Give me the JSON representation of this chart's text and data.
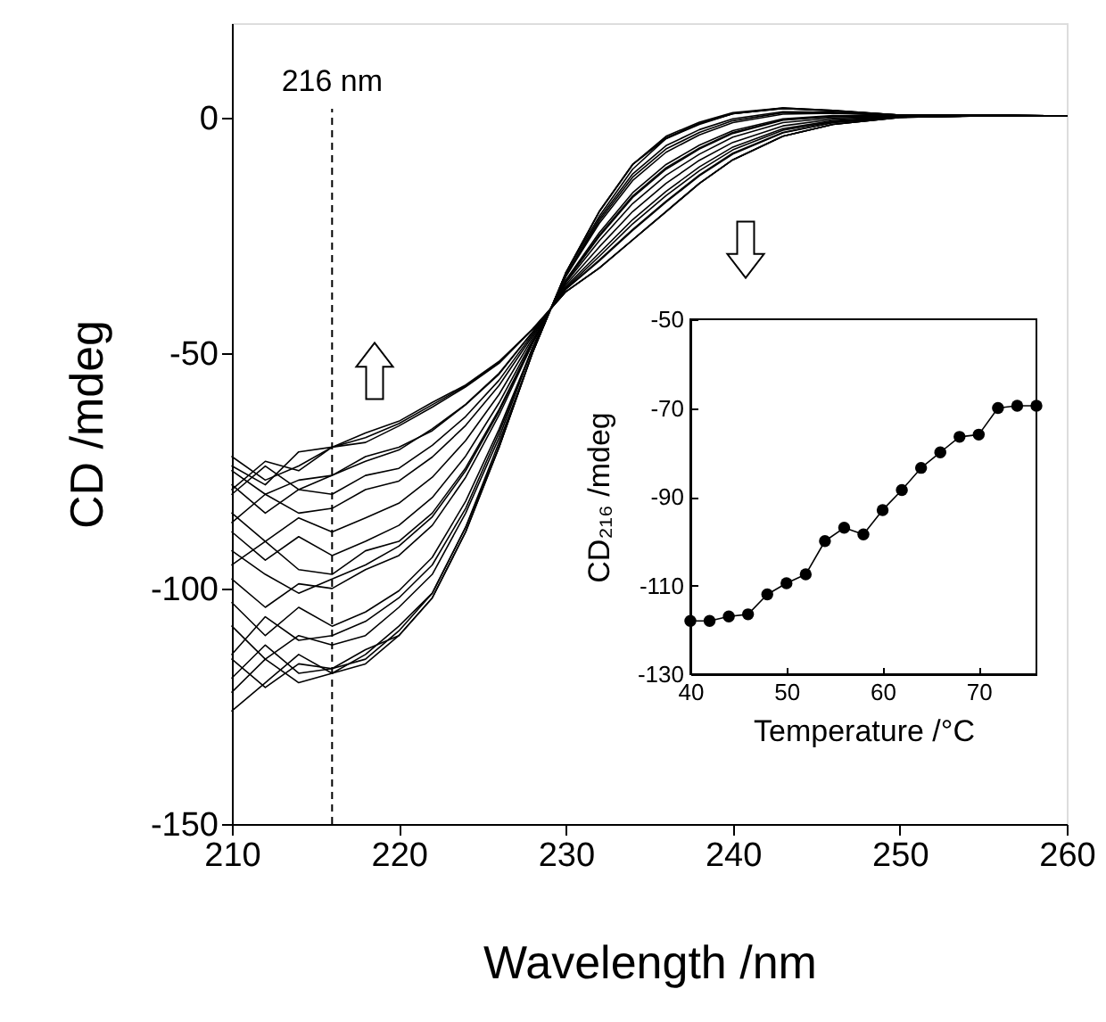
{
  "chart_data": [
    {
      "type": "line",
      "xlabel": "Wavelength /nm",
      "ylabel": "CD /mdeg",
      "xlim": [
        210,
        260
      ],
      "xticks": [
        210,
        220,
        230,
        240,
        250,
        260
      ],
      "ylim": [
        -150,
        20
      ],
      "yticks": [
        -150,
        -100,
        -50,
        0
      ],
      "x": [
        210,
        212,
        214,
        216,
        218,
        220,
        222,
        224,
        226,
        228,
        230,
        232,
        234,
        236,
        238,
        240,
        243,
        246,
        250,
        255,
        260
      ],
      "ref_lines": [
        {
          "axis": "x",
          "value": 216,
          "label": "216 nm",
          "line_style": "dashed",
          "color": "#000000"
        }
      ],
      "series": [
        {
          "color": "#000000",
          "values": [
            -122,
            -115,
            -120,
            -118,
            -116,
            -110,
            -102,
            -88,
            -70,
            -50,
            -33,
            -20,
            -10,
            -4,
            -1,
            1,
            2,
            1.5,
            0.5,
            0.5,
            0.3
          ]
        },
        {
          "color": "#000000",
          "values": [
            -126,
            -120,
            -114,
            -118,
            -114,
            -108,
            -101,
            -87,
            -69,
            -50,
            -33,
            -21,
            -11,
            -4.5,
            -1.5,
            0.8,
            2,
            1.5,
            0.5,
            0.5,
            0.3
          ]
        },
        {
          "color": "#000000",
          "values": [
            -115,
            -121,
            -116,
            -117,
            -115,
            -109,
            -101,
            -87,
            -70,
            -50,
            -33,
            -20,
            -10,
            -4.3,
            -1.3,
            0.8,
            1.9,
            1.4,
            0.5,
            0.5,
            0.3
          ]
        },
        {
          "color": "#000000",
          "values": [
            -119,
            -112,
            -118,
            -117,
            -113,
            -110,
            -102,
            -88,
            -70,
            -50,
            -33,
            -20,
            -10,
            -4.5,
            -1.3,
            0.8,
            1.9,
            1.4,
            0.5,
            0.5,
            0.3
          ]
        },
        {
          "color": "#000000",
          "values": [
            -108,
            -115,
            -110,
            -112,
            -110,
            -104,
            -97,
            -84,
            -68,
            -49,
            -33.5,
            -21.5,
            -12,
            -6,
            -2.6,
            -0.3,
            1.2,
            1.1,
            0.4,
            0.5,
            0.3
          ]
        },
        {
          "color": "#000000",
          "values": [
            -114,
            -106,
            -111,
            -110,
            -107,
            -102,
            -95,
            -83,
            -67,
            -49,
            -33.7,
            -22,
            -12.7,
            -6.7,
            -3.2,
            -0.7,
            1,
            1,
            0.4,
            0.5,
            0.3
          ]
        },
        {
          "color": "#000000",
          "values": [
            -103,
            -110,
            -104,
            -108,
            -105,
            -100.5,
            -93.4,
            -81.5,
            -66.2,
            -49,
            -33.8,
            -22.5,
            -13.4,
            -7.4,
            -3.7,
            -1.1,
            0.7,
            0.9,
            0.4,
            0.5,
            0.3
          ]
        },
        {
          "color": "#000000",
          "values": [
            -98,
            -104,
            -99,
            -100,
            -96,
            -93,
            -86.6,
            -76.4,
            -63.2,
            -48.1,
            -34.5,
            -24.5,
            -16,
            -10,
            -5.9,
            -2.8,
            -0.3,
            0.4,
            0.3,
            0.4,
            0.3
          ]
        },
        {
          "color": "#000000",
          "values": [
            -92,
            -97,
            -101,
            -98,
            -95,
            -91,
            -84.8,
            -75,
            -62.4,
            -47.9,
            -34.7,
            -25,
            -16.7,
            -10.7,
            -6.5,
            -3.2,
            -0.5,
            0.2,
            0.3,
            0.4,
            0.3
          ]
        },
        {
          "color": "#000000",
          "values": [
            -95,
            -90,
            -96,
            -97,
            -92,
            -90,
            -84,
            -74.4,
            -62,
            -47.8,
            -34.8,
            -25.3,
            -17,
            -11,
            -6.7,
            -3.4,
            -0.6,
            0.2,
            0.3,
            0.4,
            0.3
          ]
        },
        {
          "color": "#000000",
          "values": [
            -88,
            -94,
            -89,
            -93,
            -90,
            -86.6,
            -80.7,
            -71.9,
            -60.6,
            -47.4,
            -35.1,
            -26.2,
            -18.3,
            -12.3,
            -7.8,
            -4.2,
            -1.1,
            -0.1,
            0.2,
            0.4,
            0.3
          ]
        },
        {
          "color": "#000000",
          "values": [
            -84,
            -90,
            -85,
            -88,
            -85,
            -81.9,
            -76.4,
            -68.6,
            -58.8,
            -46.9,
            -35.5,
            -27.5,
            -20,
            -14,
            -9.1,
            -5.3,
            -1.8,
            -0.4,
            0.2,
            0.3,
            0.3
          ]
        },
        {
          "color": "#000000",
          "values": [
            -86,
            -80,
            -84,
            -83,
            -79,
            -77.2,
            -72.1,
            -65.4,
            -56.9,
            -46.4,
            -35.9,
            -28.8,
            -21.7,
            -15.7,
            -10.5,
            -6.3,
            -2.4,
            -0.7,
            0.1,
            0.3,
            0.3
          ]
        },
        {
          "color": "#000000",
          "values": [
            -78,
            -84,
            -79,
            -80,
            -76,
            -74.5,
            -69.6,
            -63.5,
            -55.8,
            -46,
            -36.2,
            -29.5,
            -22.6,
            -16.6,
            -11.3,
            -6.9,
            -2.7,
            -0.9,
            0.1,
            0.3,
            0.3
          ]
        },
        {
          "color": "#000000",
          "values": [
            -80,
            -74,
            -79,
            -76,
            -73,
            -70.6,
            -66.1,
            -60.9,
            -54.3,
            -45.6,
            -36.5,
            -30.5,
            -24,
            -18,
            -12.4,
            -7.8,
            -3.3,
            -1.1,
            0.1,
            0.3,
            0.3
          ]
        },
        {
          "color": "#000000",
          "values": [
            -75,
            -80,
            -77,
            -76,
            -72,
            -70,
            -66.5,
            -61,
            -54.5,
            -45.6,
            -36.4,
            -30.3,
            -23.8,
            -17.8,
            -12.2,
            -7.6,
            -3.2,
            -1.1,
            0.1,
            0.3,
            0.3
          ]
        },
        {
          "color": "#000000",
          "values": [
            -74,
            -78,
            -71,
            -70,
            -68,
            -65,
            -61,
            -57,
            -52,
            -45,
            -37,
            -32,
            -26,
            -20,
            -14,
            -9,
            -4,
            -1.5,
            0,
            0.3,
            0.3
          ]
        },
        {
          "color": "#000000",
          "values": [
            -79,
            -73,
            -75,
            -70,
            -67,
            -64.5,
            -60.5,
            -56.8,
            -51.8,
            -45,
            -37,
            -32,
            -26,
            -20,
            -14,
            -9,
            -4,
            -1.5,
            0,
            0.3,
            0.3
          ]
        },
        {
          "color": "#000000",
          "values": [
            -72,
            -77,
            -74,
            -70,
            -69,
            -65.5,
            -61.5,
            -57.2,
            -52.2,
            -45,
            -37,
            -32,
            -26,
            -20,
            -14,
            -9,
            -4,
            -1.5,
            0,
            0.3,
            0.3
          ]
        }
      ]
    },
    {
      "type": "line",
      "xlabel": "Temperature /°C",
      "ylabel": "CD₂₁₆ /mdeg",
      "xlim": [
        40,
        76
      ],
      "xticks": [
        40,
        50,
        60,
        70
      ],
      "ylim": [
        -130,
        -50
      ],
      "yticks": [
        -50,
        -70,
        -90,
        -110,
        -130
      ],
      "marker": "circle",
      "x": [
        40,
        42,
        44,
        46,
        48,
        50,
        52,
        54,
        56,
        58,
        60,
        62,
        64,
        66,
        68,
        70,
        72,
        74,
        76
      ],
      "series": [
        {
          "color": "#000000",
          "values": [
            -118,
            -118,
            -117,
            -116.5,
            -112,
            -109.5,
            -107.5,
            -100,
            -97,
            -98.5,
            -93,
            -88.5,
            -83.5,
            -80,
            -76.5,
            -76,
            -70,
            -69.5,
            -69.5
          ]
        }
      ]
    }
  ]
}
